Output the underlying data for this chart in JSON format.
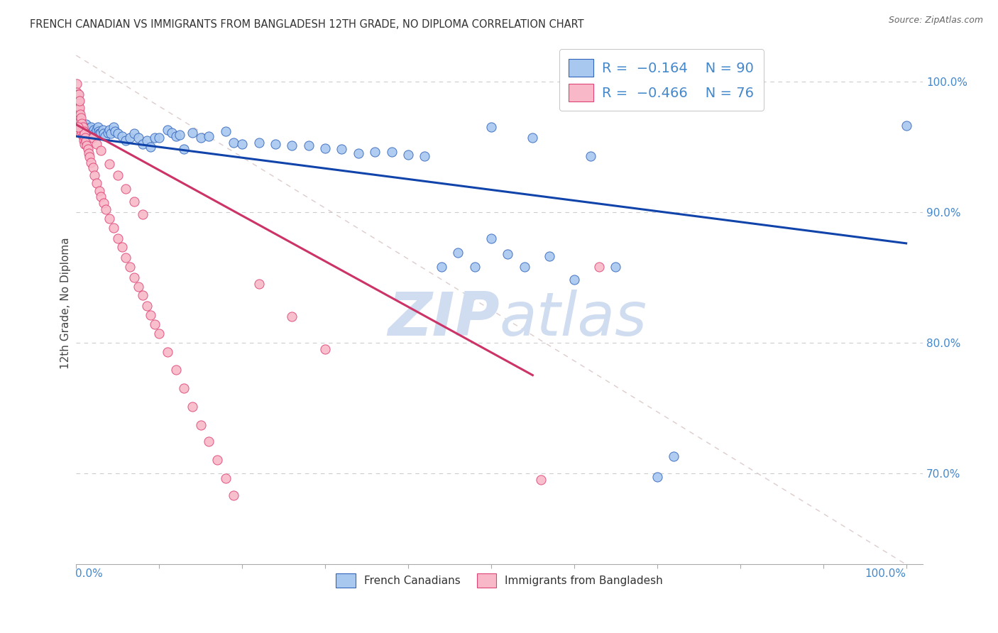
{
  "title": "FRENCH CANADIAN VS IMMIGRANTS FROM BANGLADESH 12TH GRADE, NO DIPLOMA CORRELATION CHART",
  "source": "Source: ZipAtlas.com",
  "ylabel": "12th Grade, No Diploma",
  "legend_blue_r": "-0.164",
  "legend_blue_n": "90",
  "legend_pink_r": "-0.466",
  "legend_pink_n": "76",
  "blue_fill": "#A8C8F0",
  "blue_edge": "#3366BB",
  "pink_fill": "#F8B8C8",
  "pink_edge": "#DD4477",
  "blue_line_color": "#1144AA",
  "pink_line_color": "#CC3366",
  "diag_color": "#DDCCCC",
  "background_color": "#FFFFFF",
  "grid_color": "#CCCCCC",
  "title_color": "#333333",
  "axis_label_color": "#4488CC",
  "watermark_color": "#D0DCF0",
  "xlim": [
    0.0,
    1.02
  ],
  "ylim": [
    0.63,
    1.03
  ],
  "blue_line": [
    [
      0.0,
      0.958
    ],
    [
      1.0,
      0.876
    ]
  ],
  "pink_line": [
    [
      0.0,
      0.967
    ],
    [
      0.55,
      0.775
    ]
  ],
  "diag_line": [
    [
      0.0,
      1.02
    ],
    [
      1.0,
      0.63
    ]
  ],
  "blue_scatter": [
    [
      0.001,
      0.972
    ],
    [
      0.002,
      0.971
    ],
    [
      0.002,
      0.968
    ],
    [
      0.003,
      0.973
    ],
    [
      0.003,
      0.97
    ],
    [
      0.004,
      0.969
    ],
    [
      0.004,
      0.966
    ],
    [
      0.005,
      0.968
    ],
    [
      0.005,
      0.965
    ],
    [
      0.006,
      0.966
    ],
    [
      0.006,
      0.963
    ],
    [
      0.007,
      0.967
    ],
    [
      0.007,
      0.964
    ],
    [
      0.008,
      0.966
    ],
    [
      0.008,
      0.962
    ],
    [
      0.009,
      0.963
    ],
    [
      0.01,
      0.965
    ],
    [
      0.01,
      0.961
    ],
    [
      0.011,
      0.963
    ],
    [
      0.012,
      0.967
    ],
    [
      0.012,
      0.961
    ],
    [
      0.013,
      0.964
    ],
    [
      0.014,
      0.962
    ],
    [
      0.015,
      0.963
    ],
    [
      0.016,
      0.964
    ],
    [
      0.017,
      0.961
    ],
    [
      0.018,
      0.965
    ],
    [
      0.019,
      0.96
    ],
    [
      0.02,
      0.962
    ],
    [
      0.021,
      0.963
    ],
    [
      0.022,
      0.96
    ],
    [
      0.025,
      0.963
    ],
    [
      0.026,
      0.965
    ],
    [
      0.027,
      0.962
    ],
    [
      0.028,
      0.96
    ],
    [
      0.03,
      0.961
    ],
    [
      0.032,
      0.963
    ],
    [
      0.033,
      0.96
    ],
    [
      0.035,
      0.958
    ],
    [
      0.038,
      0.961
    ],
    [
      0.04,
      0.963
    ],
    [
      0.042,
      0.96
    ],
    [
      0.045,
      0.965
    ],
    [
      0.047,
      0.962
    ],
    [
      0.05,
      0.96
    ],
    [
      0.055,
      0.958
    ],
    [
      0.06,
      0.955
    ],
    [
      0.065,
      0.957
    ],
    [
      0.07,
      0.96
    ],
    [
      0.075,
      0.957
    ],
    [
      0.08,
      0.952
    ],
    [
      0.085,
      0.955
    ],
    [
      0.09,
      0.95
    ],
    [
      0.095,
      0.957
    ],
    [
      0.1,
      0.957
    ],
    [
      0.11,
      0.963
    ],
    [
      0.115,
      0.961
    ],
    [
      0.12,
      0.958
    ],
    [
      0.125,
      0.959
    ],
    [
      0.13,
      0.948
    ],
    [
      0.14,
      0.961
    ],
    [
      0.15,
      0.957
    ],
    [
      0.16,
      0.958
    ],
    [
      0.18,
      0.962
    ],
    [
      0.19,
      0.953
    ],
    [
      0.2,
      0.952
    ],
    [
      0.22,
      0.953
    ],
    [
      0.24,
      0.952
    ],
    [
      0.26,
      0.951
    ],
    [
      0.28,
      0.951
    ],
    [
      0.3,
      0.949
    ],
    [
      0.32,
      0.948
    ],
    [
      0.34,
      0.945
    ],
    [
      0.36,
      0.946
    ],
    [
      0.38,
      0.946
    ],
    [
      0.4,
      0.944
    ],
    [
      0.42,
      0.943
    ],
    [
      0.44,
      0.858
    ],
    [
      0.46,
      0.869
    ],
    [
      0.48,
      0.858
    ],
    [
      0.5,
      0.88
    ],
    [
      0.52,
      0.868
    ],
    [
      0.54,
      0.858
    ],
    [
      0.57,
      0.866
    ],
    [
      0.6,
      0.848
    ],
    [
      0.65,
      0.858
    ],
    [
      0.7,
      0.697
    ],
    [
      0.72,
      0.713
    ],
    [
      0.5,
      0.965
    ],
    [
      0.55,
      0.957
    ],
    [
      0.62,
      0.943
    ],
    [
      1.0,
      0.966
    ]
  ],
  "pink_scatter": [
    [
      0.001,
      0.998
    ],
    [
      0.001,
      0.992
    ],
    [
      0.001,
      0.986
    ],
    [
      0.002,
      0.99
    ],
    [
      0.002,
      0.983
    ],
    [
      0.002,
      0.977
    ],
    [
      0.003,
      0.985
    ],
    [
      0.003,
      0.978
    ],
    [
      0.003,
      0.972
    ],
    [
      0.004,
      0.98
    ],
    [
      0.004,
      0.974
    ],
    [
      0.004,
      0.968
    ],
    [
      0.005,
      0.975
    ],
    [
      0.005,
      0.97
    ],
    [
      0.005,
      0.964
    ],
    [
      0.006,
      0.972
    ],
    [
      0.006,
      0.965
    ],
    [
      0.006,
      0.96
    ],
    [
      0.007,
      0.968
    ],
    [
      0.007,
      0.962
    ],
    [
      0.008,
      0.965
    ],
    [
      0.008,
      0.958
    ],
    [
      0.009,
      0.962
    ],
    [
      0.009,
      0.955
    ],
    [
      0.01,
      0.96
    ],
    [
      0.01,
      0.952
    ],
    [
      0.011,
      0.957
    ],
    [
      0.012,
      0.954
    ],
    [
      0.013,
      0.951
    ],
    [
      0.014,
      0.948
    ],
    [
      0.015,
      0.945
    ],
    [
      0.016,
      0.942
    ],
    [
      0.018,
      0.938
    ],
    [
      0.02,
      0.934
    ],
    [
      0.022,
      0.928
    ],
    [
      0.025,
      0.922
    ],
    [
      0.028,
      0.916
    ],
    [
      0.03,
      0.912
    ],
    [
      0.033,
      0.907
    ],
    [
      0.036,
      0.902
    ],
    [
      0.04,
      0.895
    ],
    [
      0.045,
      0.888
    ],
    [
      0.05,
      0.88
    ],
    [
      0.055,
      0.873
    ],
    [
      0.06,
      0.865
    ],
    [
      0.065,
      0.858
    ],
    [
      0.07,
      0.85
    ],
    [
      0.075,
      0.843
    ],
    [
      0.08,
      0.836
    ],
    [
      0.085,
      0.828
    ],
    [
      0.09,
      0.821
    ],
    [
      0.095,
      0.814
    ],
    [
      0.1,
      0.807
    ],
    [
      0.11,
      0.793
    ],
    [
      0.12,
      0.779
    ],
    [
      0.13,
      0.765
    ],
    [
      0.14,
      0.751
    ],
    [
      0.15,
      0.737
    ],
    [
      0.16,
      0.724
    ],
    [
      0.17,
      0.71
    ],
    [
      0.18,
      0.696
    ],
    [
      0.19,
      0.683
    ],
    [
      0.003,
      0.99
    ],
    [
      0.004,
      0.985
    ],
    [
      0.02,
      0.957
    ],
    [
      0.025,
      0.952
    ],
    [
      0.03,
      0.947
    ],
    [
      0.04,
      0.937
    ],
    [
      0.05,
      0.928
    ],
    [
      0.06,
      0.918
    ],
    [
      0.07,
      0.908
    ],
    [
      0.08,
      0.898
    ],
    [
      0.22,
      0.845
    ],
    [
      0.26,
      0.82
    ],
    [
      0.3,
      0.795
    ],
    [
      0.56,
      0.695
    ],
    [
      0.63,
      0.858
    ],
    [
      0.002,
      0.965
    ]
  ]
}
